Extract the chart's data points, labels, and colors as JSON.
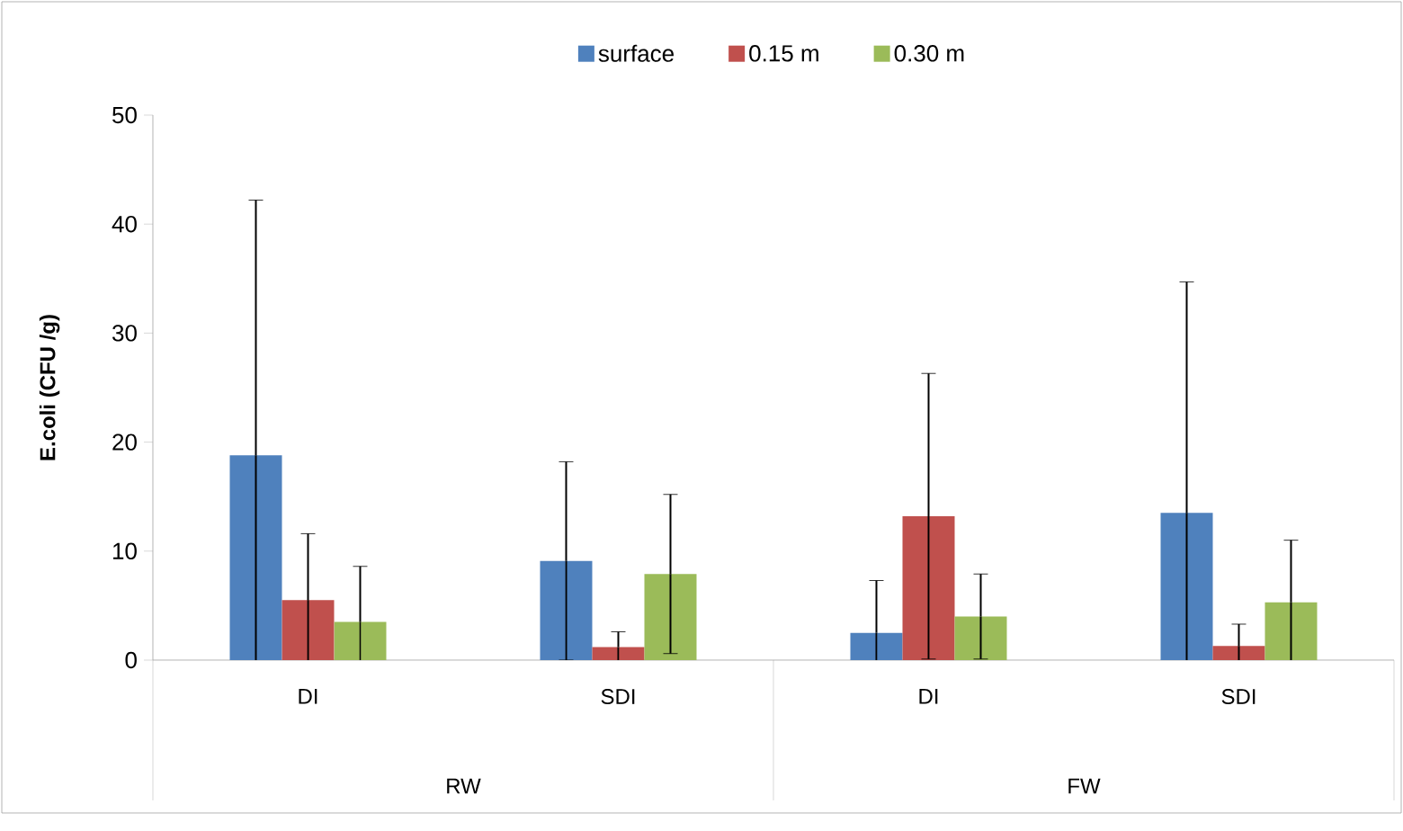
{
  "chart_data": {
    "type": "bar",
    "ylabel": "E.coli (CFU /g)",
    "categories": [
      "DI",
      "SDI",
      "DI",
      "SDI"
    ],
    "annotations": [
      "RW",
      "FW"
    ],
    "series": [
      {
        "name": "surface",
        "color": "#4f81bd",
        "values": [
          18.8,
          9.1,
          2.5,
          13.5
        ],
        "errors": [
          23.4,
          9.1,
          4.8,
          21.2
        ]
      },
      {
        "name": "0.15 m",
        "color": "#c0504d",
        "values": [
          5.5,
          1.2,
          13.2,
          1.3
        ],
        "errors": [
          6.1,
          1.4,
          13.1,
          2.0
        ]
      },
      {
        "name": "0.30 m",
        "color": "#9bbb59",
        "values": [
          3.5,
          7.9,
          4.0,
          5.3
        ],
        "errors": [
          5.1,
          7.3,
          3.9,
          5.7
        ]
      }
    ],
    "ylim": [
      0,
      50
    ],
    "yticks": [
      0,
      10,
      20,
      30,
      40,
      50
    ],
    "legend": "top",
    "grid": false
  }
}
